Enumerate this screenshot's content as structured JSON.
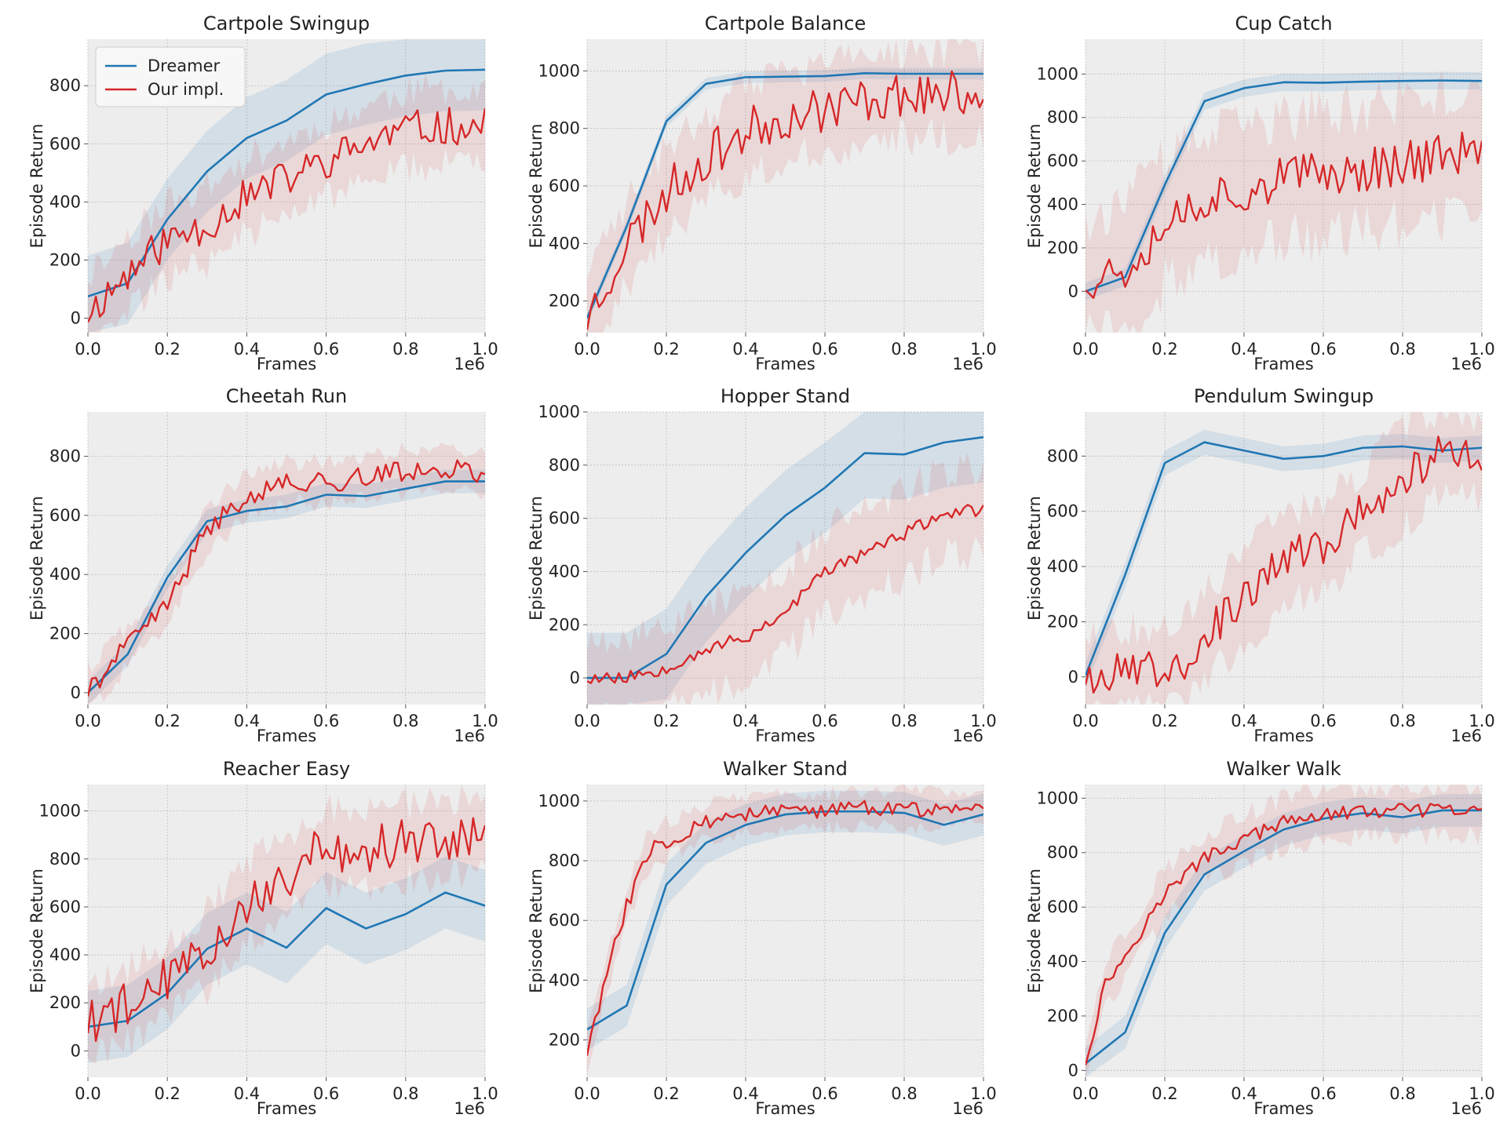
{
  "colors": {
    "dreamer": "#1f77b4",
    "ours": "#d62728",
    "axes_bg": "#ededed",
    "grid": "#bdbdbd"
  },
  "legend": {
    "dreamer": "Dreamer",
    "ours": "Our impl."
  },
  "chart_data": [
    {
      "type": "line",
      "title": "Cartpole Swingup",
      "xlabel": "Frames",
      "ylabel": "Episode Return",
      "x_offset_label": "1e6",
      "xlim": [
        0,
        1.0
      ],
      "ylim": [
        -50,
        960
      ],
      "xticks": [
        0,
        0.2,
        0.4,
        0.6,
        0.8,
        1.0
      ],
      "xtick_labels": [
        "0.0",
        "0.2",
        "0.4",
        "0.6",
        "0.8",
        "1.0"
      ],
      "yticks": [
        0,
        200,
        400,
        600,
        800
      ],
      "has_legend": true,
      "dreamer": {
        "x": [
          0,
          0.1,
          0.2,
          0.3,
          0.4,
          0.5,
          0.6,
          0.7,
          0.8,
          0.9,
          1.0
        ],
        "y": [
          75,
          120,
          340,
          505,
          620,
          680,
          770,
          805,
          835,
          852,
          855
        ],
        "band": 140
      },
      "ours": {
        "key": [
          [
            0,
            20
          ],
          [
            0.1,
            150
          ],
          [
            0.2,
            270
          ],
          [
            0.3,
            320
          ],
          [
            0.4,
            420
          ],
          [
            0.5,
            480
          ],
          [
            0.6,
            540
          ],
          [
            0.7,
            600
          ],
          [
            0.8,
            650
          ],
          [
            0.9,
            660
          ],
          [
            1.0,
            660
          ]
        ],
        "noise": 65,
        "band": 130,
        "seed": 11
      }
    },
    {
      "type": "line",
      "title": "Cartpole Balance",
      "xlabel": "Frames",
      "ylabel": "Episode Return",
      "x_offset_label": "1e6",
      "xlim": [
        0,
        1.0
      ],
      "ylim": [
        90,
        1110
      ],
      "xticks": [
        0,
        0.2,
        0.4,
        0.6,
        0.8,
        1.0
      ],
      "xtick_labels": [
        "0.0",
        "0.2",
        "0.4",
        "0.6",
        "0.8",
        "1.0"
      ],
      "yticks": [
        200,
        400,
        600,
        800,
        1000
      ],
      "has_legend": false,
      "dreamer": {
        "x": [
          0,
          0.1,
          0.2,
          0.3,
          0.4,
          0.5,
          0.6,
          0.7,
          0.8,
          0.9,
          1.0
        ],
        "y": [
          140,
          460,
          825,
          955,
          978,
          980,
          982,
          992,
          990,
          990,
          990
        ],
        "band": 20
      },
      "ours": {
        "key": [
          [
            0,
            140
          ],
          [
            0.1,
            400
          ],
          [
            0.2,
            580
          ],
          [
            0.3,
            700
          ],
          [
            0.4,
            790
          ],
          [
            0.5,
            840
          ],
          [
            0.6,
            870
          ],
          [
            0.7,
            900
          ],
          [
            0.8,
            920
          ],
          [
            0.9,
            920
          ],
          [
            1.0,
            920
          ]
        ],
        "noise": 80,
        "band": 150,
        "seed": 23
      }
    },
    {
      "type": "line",
      "title": "Cup Catch",
      "xlabel": "Frames",
      "ylabel": "Episode Return",
      "x_offset_label": "1e6",
      "xlim": [
        0,
        1.0
      ],
      "ylim": [
        -190,
        1160
      ],
      "xticks": [
        0,
        0.2,
        0.4,
        0.6,
        0.8,
        1.0
      ],
      "xtick_labels": [
        "0.0",
        "0.2",
        "0.4",
        "0.6",
        "0.8",
        "1.0"
      ],
      "yticks": [
        0,
        200,
        400,
        600,
        800,
        1000
      ],
      "has_legend": false,
      "dreamer": {
        "x": [
          0,
          0.1,
          0.2,
          0.3,
          0.4,
          0.5,
          0.6,
          0.7,
          0.8,
          0.9,
          1.0
        ],
        "y": [
          0,
          65,
          490,
          875,
          935,
          962,
          960,
          965,
          968,
          970,
          968
        ],
        "band": 40
      },
      "ours": {
        "key": [
          [
            0,
            60
          ],
          [
            0.1,
            110
          ],
          [
            0.2,
            320
          ],
          [
            0.3,
            430
          ],
          [
            0.4,
            470
          ],
          [
            0.5,
            520
          ],
          [
            0.6,
            540
          ],
          [
            0.7,
            560
          ],
          [
            0.8,
            600
          ],
          [
            0.9,
            620
          ],
          [
            1.0,
            650
          ]
        ],
        "noise": 110,
        "band": 280,
        "seed": 37
      }
    },
    {
      "type": "line",
      "title": "Cheetah Run",
      "xlabel": "Frames",
      "ylabel": "Episode Return",
      "x_offset_label": "1e6",
      "xlim": [
        0,
        1.0
      ],
      "ylim": [
        -40,
        950
      ],
      "xticks": [
        0,
        0.2,
        0.4,
        0.6,
        0.8,
        1.0
      ],
      "xtick_labels": [
        "0.0",
        "0.2",
        "0.4",
        "0.6",
        "0.8",
        "1.0"
      ],
      "yticks": [
        0,
        200,
        400,
        600,
        800
      ],
      "has_legend": false,
      "dreamer": {
        "x": [
          0,
          0.1,
          0.2,
          0.3,
          0.4,
          0.5,
          0.6,
          0.7,
          0.8,
          0.9,
          1.0
        ],
        "y": [
          0,
          130,
          390,
          580,
          615,
          630,
          670,
          665,
          690,
          715,
          715
        ],
        "band": 40
      },
      "ours": {
        "key": [
          [
            0,
            5
          ],
          [
            0.1,
            160
          ],
          [
            0.2,
            300
          ],
          [
            0.3,
            550
          ],
          [
            0.4,
            670
          ],
          [
            0.5,
            710
          ],
          [
            0.6,
            710
          ],
          [
            0.7,
            730
          ],
          [
            0.8,
            750
          ],
          [
            0.9,
            760
          ],
          [
            1.0,
            740
          ]
        ],
        "noise": 35,
        "band": 70,
        "seed": 41
      }
    },
    {
      "type": "line",
      "title": "Hopper Stand",
      "xlabel": "Frames",
      "ylabel": "Episode Return",
      "x_offset_label": "1e6",
      "xlim": [
        0,
        1.0
      ],
      "ylim": [
        -100,
        1000
      ],
      "xticks": [
        0,
        0.2,
        0.4,
        0.6,
        0.8,
        1.0
      ],
      "xtick_labels": [
        "0.0",
        "0.2",
        "0.4",
        "0.6",
        "0.8",
        "1.0"
      ],
      "yticks": [
        0,
        200,
        400,
        600,
        800,
        1000
      ],
      "has_legend": false,
      "dreamer": {
        "x": [
          0,
          0.1,
          0.2,
          0.3,
          0.4,
          0.5,
          0.6,
          0.7,
          0.8,
          0.9,
          1.0
        ],
        "y": [
          0,
          0,
          90,
          305,
          470,
          610,
          715,
          845,
          840,
          885,
          905
        ],
        "band": 170
      },
      "ours": {
        "key": [
          [
            0,
            0
          ],
          [
            0.1,
            2
          ],
          [
            0.2,
            40
          ],
          [
            0.3,
            110
          ],
          [
            0.4,
            150
          ],
          [
            0.5,
            250
          ],
          [
            0.6,
            400
          ],
          [
            0.7,
            470
          ],
          [
            0.8,
            540
          ],
          [
            0.9,
            620
          ],
          [
            1.0,
            630
          ]
        ],
        "noise": 25,
        "band": 160,
        "seed": 53
      }
    },
    {
      "type": "line",
      "title": "Pendulum Swingup",
      "xlabel": "Frames",
      "ylabel": "Episode Return",
      "x_offset_label": "1e6",
      "xlim": [
        0,
        1.0
      ],
      "ylim": [
        -100,
        960
      ],
      "xticks": [
        0,
        0.2,
        0.4,
        0.6,
        0.8,
        1.0
      ],
      "xtick_labels": [
        "0.0",
        "0.2",
        "0.4",
        "0.6",
        "0.8",
        "1.0"
      ],
      "yticks": [
        0,
        200,
        400,
        600,
        800
      ],
      "has_legend": false,
      "dreamer": {
        "x": [
          0,
          0.1,
          0.2,
          0.3,
          0.4,
          0.5,
          0.6,
          0.7,
          0.8,
          0.9,
          1.0
        ],
        "y": [
          5,
          370,
          775,
          850,
          820,
          790,
          800,
          830,
          835,
          820,
          830
        ],
        "band": 45
      },
      "ours": {
        "key": [
          [
            0,
            5
          ],
          [
            0.1,
            20
          ],
          [
            0.2,
            40
          ],
          [
            0.25,
            60
          ],
          [
            0.3,
            150
          ],
          [
            0.4,
            280
          ],
          [
            0.5,
            430
          ],
          [
            0.6,
            470
          ],
          [
            0.7,
            600
          ],
          [
            0.8,
            720
          ],
          [
            0.9,
            820
          ],
          [
            1.0,
            790
          ]
        ],
        "noise": 70,
        "band": 160,
        "seed": 67
      }
    },
    {
      "type": "line",
      "title": "Reacher Easy",
      "xlabel": "Frames",
      "ylabel": "Episode Return",
      "x_offset_label": "1e6",
      "xlim": [
        0,
        1.0
      ],
      "ylim": [
        -110,
        1110
      ],
      "xticks": [
        0,
        0.2,
        0.4,
        0.6,
        0.8,
        1.0
      ],
      "xtick_labels": [
        "0.0",
        "0.2",
        "0.4",
        "0.6",
        "0.8",
        "1.0"
      ],
      "yticks": [
        0,
        200,
        400,
        600,
        800,
        1000
      ],
      "has_legend": false,
      "dreamer": {
        "x": [
          0,
          0.1,
          0.2,
          0.3,
          0.4,
          0.5,
          0.6,
          0.7,
          0.8,
          0.9,
          1.0
        ],
        "y": [
          100,
          125,
          240,
          425,
          510,
          430,
          595,
          510,
          570,
          660,
          605
        ],
        "band": 150
      },
      "ours": {
        "key": [
          [
            0,
            120
          ],
          [
            0.1,
            190
          ],
          [
            0.2,
            300
          ],
          [
            0.3,
            420
          ],
          [
            0.4,
            620
          ],
          [
            0.5,
            730
          ],
          [
            0.6,
            850
          ],
          [
            0.7,
            840
          ],
          [
            0.8,
            870
          ],
          [
            0.9,
            880
          ],
          [
            1.0,
            920
          ]
        ],
        "noise": 100,
        "band": 160,
        "seed": 79
      }
    },
    {
      "type": "line",
      "title": "Walker Stand",
      "xlabel": "Frames",
      "ylabel": "Episode Return",
      "x_offset_label": "1e6",
      "xlim": [
        0,
        1.0
      ],
      "ylim": [
        75,
        1055
      ],
      "xticks": [
        0,
        0.2,
        0.4,
        0.6,
        0.8,
        1.0
      ],
      "xtick_labels": [
        "0.0",
        "0.2",
        "0.4",
        "0.6",
        "0.8",
        "1.0"
      ],
      "yticks": [
        200,
        400,
        600,
        800,
        1000
      ],
      "has_legend": false,
      "dreamer": {
        "x": [
          0,
          0.1,
          0.2,
          0.3,
          0.4,
          0.5,
          0.6,
          0.7,
          0.8,
          0.9,
          1.0
        ],
        "y": [
          235,
          315,
          720,
          860,
          920,
          955,
          965,
          965,
          960,
          920,
          955
        ],
        "band": 70
      },
      "ours": {
        "key": [
          [
            0,
            160
          ],
          [
            0.05,
            420
          ],
          [
            0.1,
            650
          ],
          [
            0.15,
            820
          ],
          [
            0.2,
            870
          ],
          [
            0.3,
            930
          ],
          [
            0.4,
            955
          ],
          [
            0.5,
            965
          ],
          [
            0.6,
            965
          ],
          [
            0.7,
            975
          ],
          [
            0.8,
            975
          ],
          [
            0.9,
            975
          ],
          [
            1.0,
            980
          ]
        ],
        "noise": 28,
        "band": 60,
        "seed": 83
      }
    },
    {
      "type": "line",
      "title": "Walker Walk",
      "xlabel": "Frames",
      "ylabel": "Episode Return",
      "x_offset_label": "1e6",
      "xlim": [
        0,
        1.0
      ],
      "ylim": [
        -25,
        1050
      ],
      "xticks": [
        0,
        0.2,
        0.4,
        0.6,
        0.8,
        1.0
      ],
      "xtick_labels": [
        "0.0",
        "0.2",
        "0.4",
        "0.6",
        "0.8",
        "1.0"
      ],
      "yticks": [
        0,
        200,
        400,
        600,
        800,
        1000
      ],
      "has_legend": false,
      "dreamer": {
        "x": [
          0,
          0.1,
          0.2,
          0.3,
          0.4,
          0.5,
          0.6,
          0.7,
          0.8,
          0.9,
          1.0
        ],
        "y": [
          25,
          140,
          505,
          720,
          805,
          885,
          925,
          945,
          930,
          955,
          955
        ],
        "band": 60
      },
      "ours": {
        "key": [
          [
            0,
            30
          ],
          [
            0.05,
            320
          ],
          [
            0.1,
            420
          ],
          [
            0.2,
            650
          ],
          [
            0.3,
            780
          ],
          [
            0.4,
            850
          ],
          [
            0.5,
            910
          ],
          [
            0.6,
            940
          ],
          [
            0.7,
            950
          ],
          [
            0.8,
            955
          ],
          [
            0.9,
            955
          ],
          [
            1.0,
            950
          ]
        ],
        "noise": 25,
        "band": 90,
        "seed": 97
      }
    }
  ]
}
